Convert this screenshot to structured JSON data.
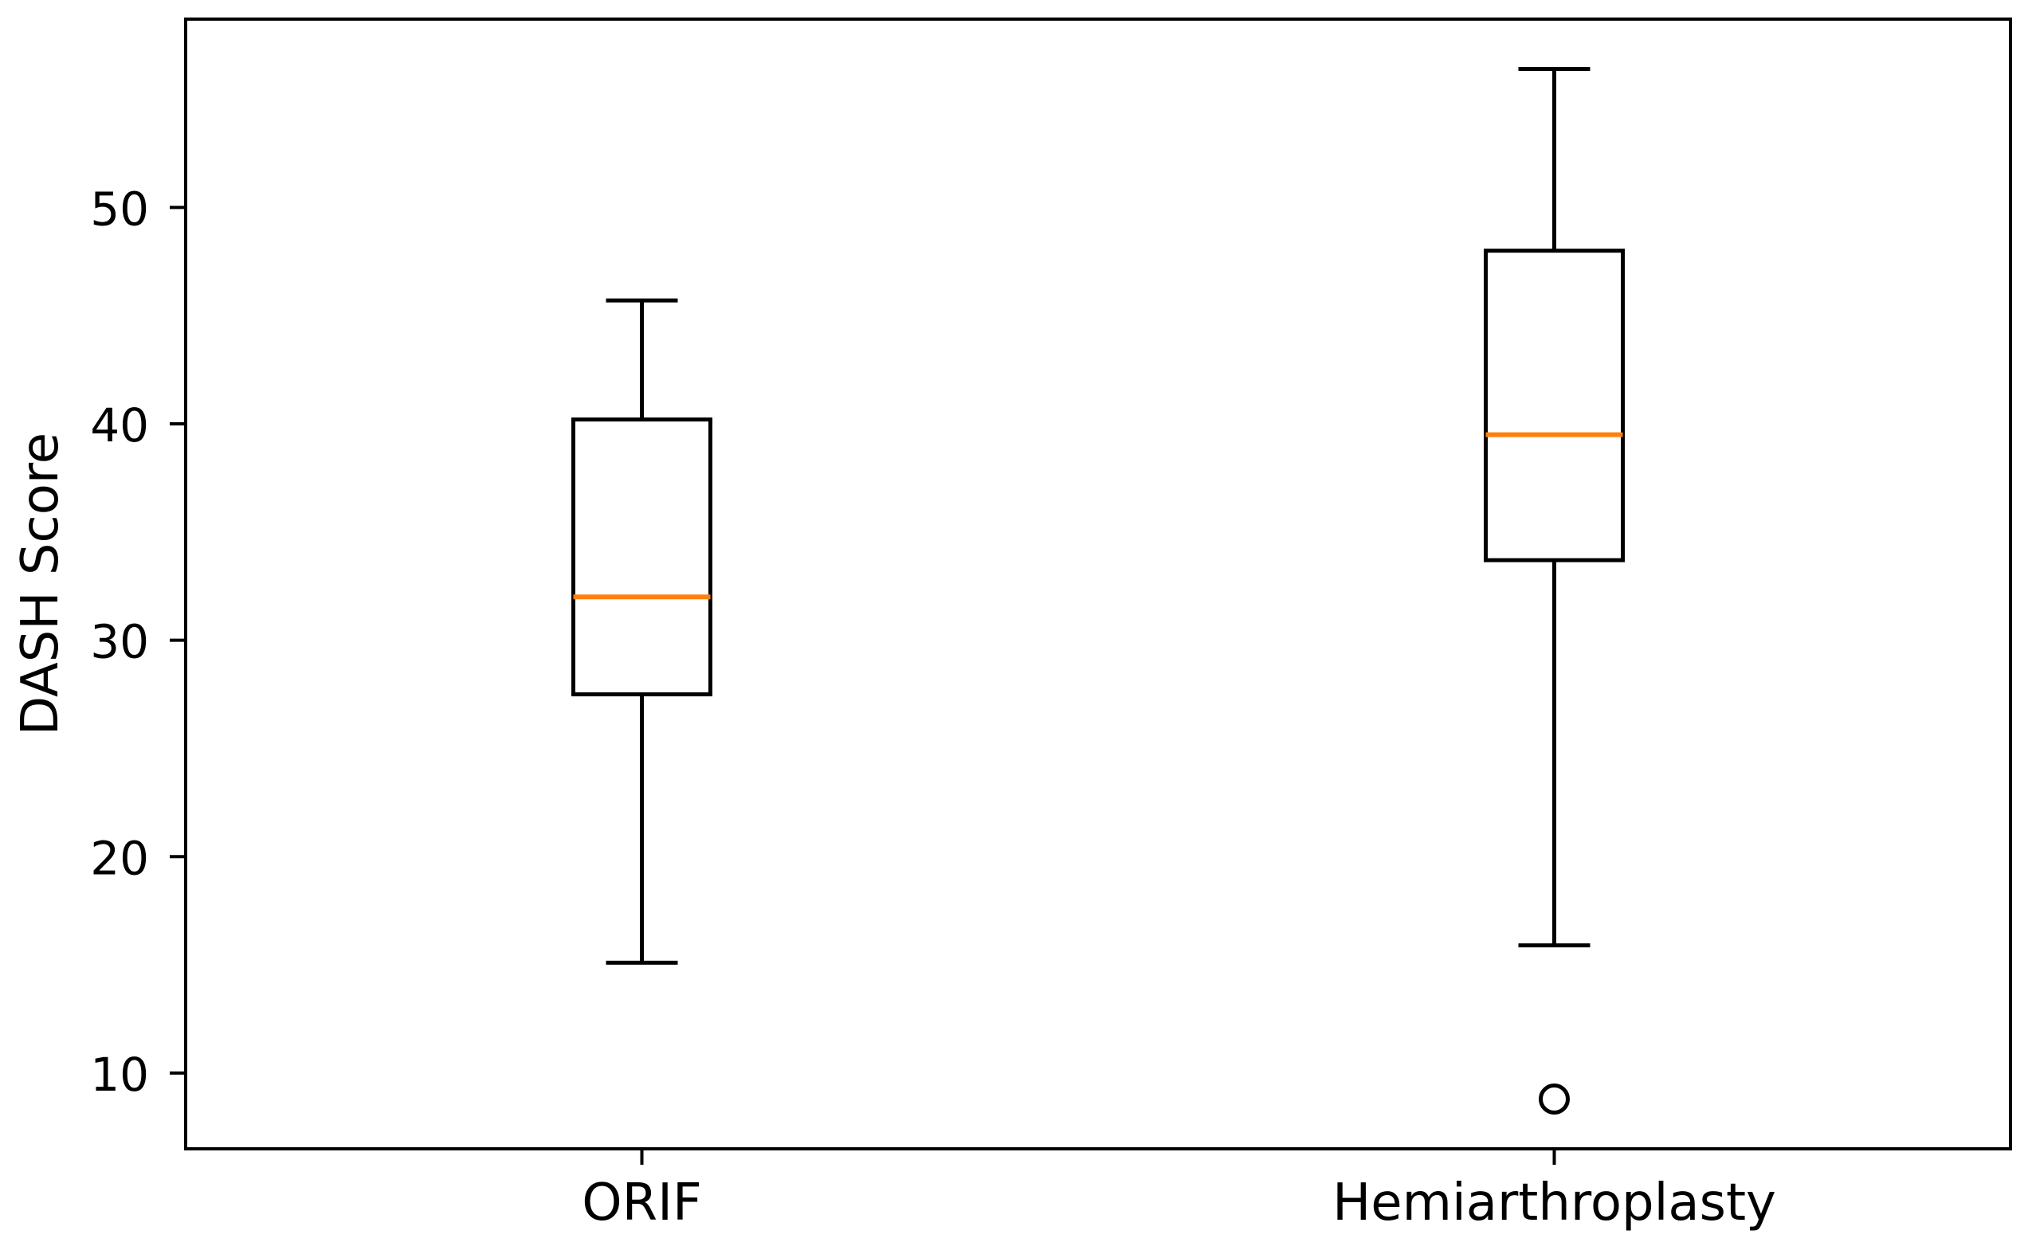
{
  "chart_data": {
    "type": "boxplot",
    "title": "",
    "xlabel": "",
    "ylabel": "DASH Score",
    "categories": [
      "ORIF",
      "Hemiarthroplasty"
    ],
    "yticks": [
      10,
      20,
      30,
      40,
      50
    ],
    "ylim": [
      6.5,
      58.7
    ],
    "grid": false,
    "legend": false,
    "series": [
      {
        "name": "ORIF",
        "whisker_low": 15.1,
        "q1": 27.5,
        "median": 32.0,
        "q3": 40.2,
        "whisker_high": 45.7,
        "outliers": []
      },
      {
        "name": "Hemiarthroplasty",
        "whisker_low": 15.9,
        "q1": 33.7,
        "median": 39.5,
        "q3": 48.0,
        "whisker_high": 56.4,
        "outliers": [
          8.8
        ]
      }
    ],
    "colors": {
      "box_stroke": "#000000",
      "median": "#ff7f0e",
      "text": "#000000",
      "background": "#ffffff"
    }
  }
}
